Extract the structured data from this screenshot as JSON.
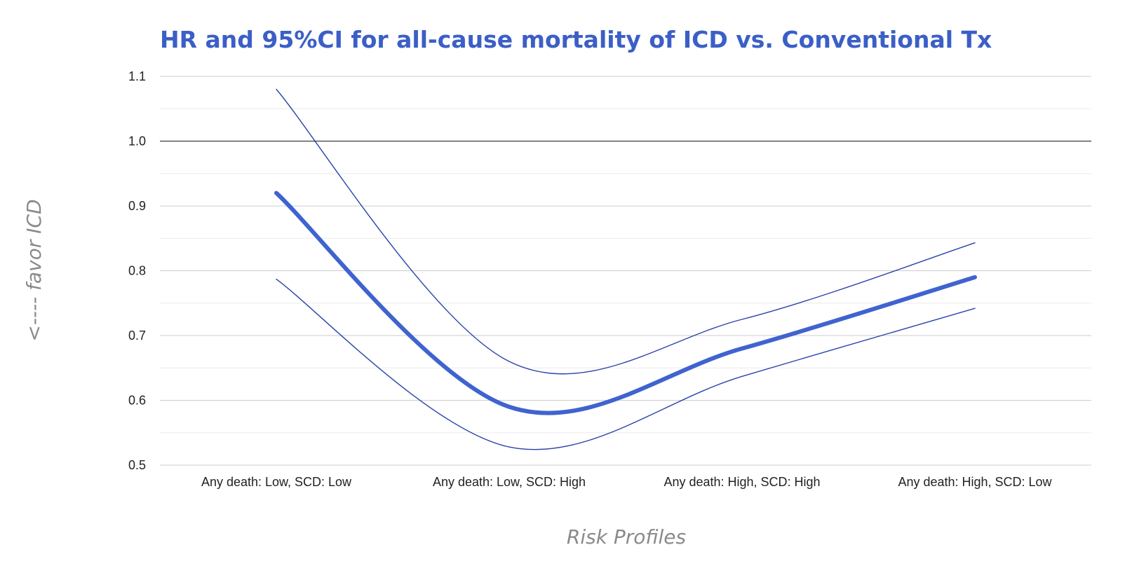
{
  "chart_data": {
    "type": "line",
    "title": "HR and 95%CI for all-cause mortality of ICD vs. Conventional Tx",
    "xlabel": "Risk Profiles",
    "ylabel": "<---- favor ICD",
    "categories": [
      "Any death: Low, SCD: Low",
      "Any death: Low, SCD: High",
      "Any death: High, SCD: High",
      "Any death: High, SCD: Low"
    ],
    "series": [
      {
        "role": "estimate",
        "values": [
          0.92,
          0.59,
          0.68,
          0.79
        ],
        "color": "#3f63cf"
      },
      {
        "role": "upper",
        "values": [
          1.08,
          0.66,
          0.725,
          0.843
        ],
        "color": "#2a44a8"
      },
      {
        "role": "lower",
        "values": [
          0.787,
          0.528,
          0.637,
          0.742
        ],
        "color": "#2a44a8"
      }
    ],
    "yticks": [
      "0.5",
      "0.6",
      "0.7",
      "0.8",
      "0.9",
      "1.0",
      "1.1"
    ],
    "ylim": [
      0.5,
      1.1
    ],
    "reference_line": 1.0,
    "grid": true,
    "legend": "none",
    "colors": {
      "title": "#3b5fc7",
      "gridline": "#d9d9d9",
      "axis_title": "#8a8a8a"
    }
  }
}
